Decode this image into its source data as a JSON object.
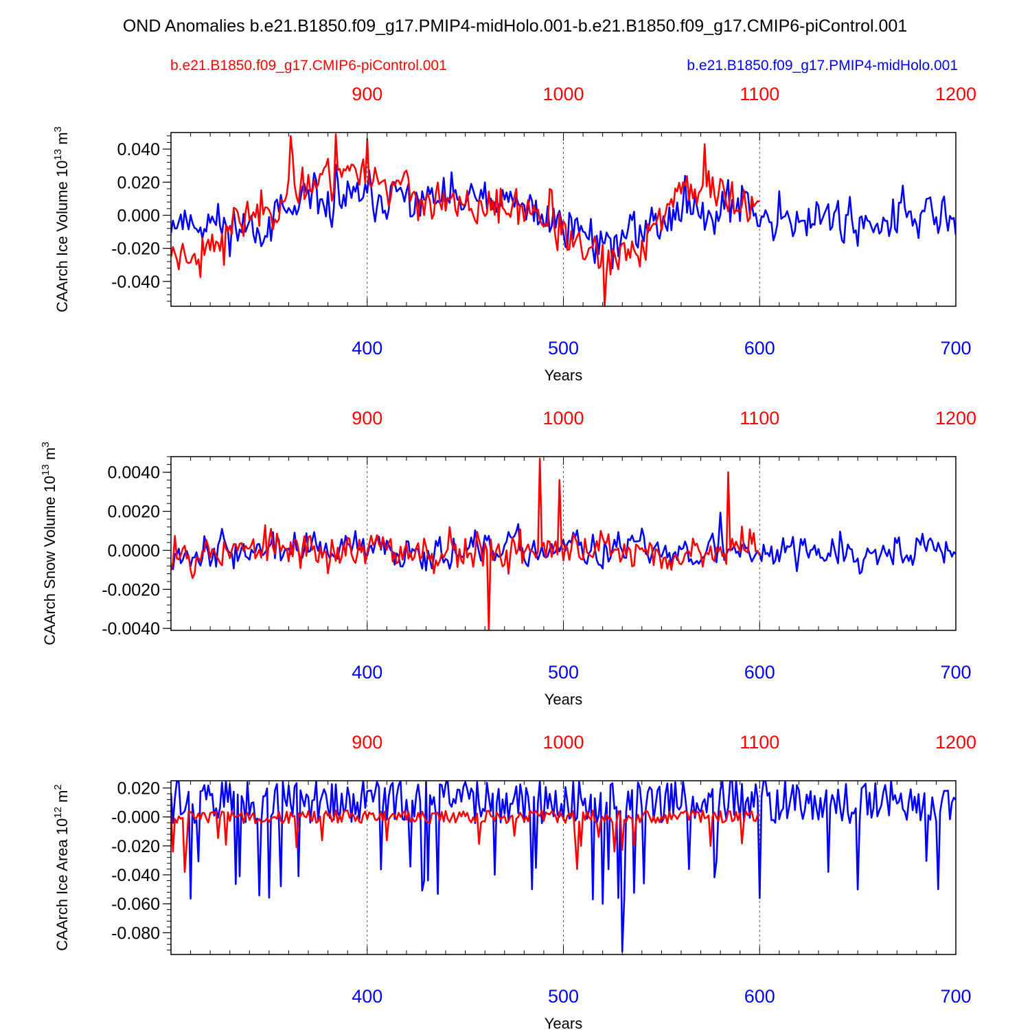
{
  "figure": {
    "title": "OND Anomalies b.e21.B1850.f09_g17.PMIP4-midHolo.001-b.e21.B1850.f09_g17.CMIP6-piControl.001",
    "legend": [
      {
        "label": "b.e21.B1850.f09_g17.CMIP6-piControl.001",
        "color": "#ff0000"
      },
      {
        "label": "b.e21.B1850.f09_g17.PMIP4-midHolo.001",
        "color": "#0000ff"
      }
    ]
  },
  "chart_data": [
    {
      "type": "line",
      "ylabel": "CAArch Ice Volume 10",
      "ylabel_exp": "13",
      "ylabel_unit": " m",
      "ylabel_unit_exp": "3",
      "xlabel": "Years",
      "xlim": [
        300,
        700
      ],
      "ylim": [
        -0.055,
        0.05
      ],
      "top_xlim": [
        800,
        1200
      ],
      "bottom_ticks": [
        "400",
        "500",
        "600",
        "700"
      ],
      "top_ticks": [
        "900",
        "1000",
        "1100",
        "1200"
      ],
      "y_ticks": [
        "0.040",
        "0.020",
        "0.000",
        "-0.020",
        "-0.040"
      ],
      "y_tick_values": [
        0.04,
        0.02,
        0.0,
        -0.02,
        -0.04
      ],
      "grid_x": [
        400,
        500,
        600
      ],
      "series": [
        {
          "name": "b.e21.B1850.f09_g17.PMIP4-midHolo.001",
          "color": "#0000ff",
          "x_start": 300,
          "seed": 11,
          "amp": 0.0175,
          "mean": -0.002,
          "drift": "blue_ice",
          "min": -0.045,
          "max": 0.042
        },
        {
          "name": "b.e21.B1850.f09_g17.CMIP6-piControl.001",
          "color": "#ff0000",
          "x_start": 300,
          "x_end": 600,
          "seed": 23,
          "amp": 0.016,
          "mean": 0.0,
          "drift": "red_ice",
          "min": -0.056,
          "max": 0.049
        }
      ]
    },
    {
      "type": "line",
      "ylabel": "CAArch Snow Volume 10",
      "ylabel_exp": "13",
      "ylabel_unit": " m",
      "ylabel_unit_exp": "3",
      "xlabel": "Years",
      "xlim": [
        300,
        700
      ],
      "ylim": [
        -0.0041,
        0.0048
      ],
      "top_xlim": [
        800,
        1200
      ],
      "bottom_ticks": [
        "400",
        "500",
        "600",
        "700"
      ],
      "top_ticks": [
        "900",
        "1000",
        "1100",
        "1200"
      ],
      "y_ticks": [
        "0.0040",
        "0.0020",
        "0.0000",
        "-0.0020",
        "-0.0040"
      ],
      "y_tick_values": [
        0.004,
        0.002,
        0.0,
        -0.002,
        -0.004
      ],
      "grid_x": [
        400,
        500,
        600
      ],
      "series": [
        {
          "name": "b.e21.B1850.f09_g17.PMIP4-midHolo.001",
          "color": "#0000ff",
          "x_start": 300,
          "seed": 37,
          "amp": 0.0011,
          "mean": 0.0,
          "drift": "none",
          "min": -0.0024,
          "max": 0.0032
        },
        {
          "name": "b.e21.B1850.f09_g17.CMIP6-piControl.001",
          "color": "#ff0000",
          "x_start": 300,
          "x_end": 600,
          "seed": 53,
          "amp": 0.0013,
          "mean": 0.0,
          "drift": "none",
          "min": -0.0041,
          "max": 0.0048
        }
      ]
    },
    {
      "type": "line",
      "ylabel": "CAArch Ice Area 10",
      "ylabel_exp": "12",
      "ylabel_unit": " m",
      "ylabel_unit_exp": "2",
      "xlabel": "Years",
      "xlim": [
        300,
        700
      ],
      "ylim": [
        -0.095,
        0.025
      ],
      "top_xlim": [
        800,
        1200
      ],
      "bottom_ticks": [
        "400",
        "500",
        "600",
        "700"
      ],
      "top_ticks": [
        "900",
        "1000",
        "1100",
        "1200"
      ],
      "y_ticks": [
        "0.020",
        "-0.000",
        "-0.020",
        "-0.040",
        "-0.060",
        "-0.080"
      ],
      "y_tick_values": [
        0.02,
        0.0,
        -0.02,
        -0.04,
        -0.06,
        -0.08
      ],
      "grid_x": [
        400,
        500,
        600
      ],
      "series": [
        {
          "name": "b.e21.B1850.f09_g17.PMIP4-midHolo.001",
          "color": "#0000ff",
          "x_start": 300,
          "seed": 71,
          "amp": 0.018,
          "mean": 0.0,
          "drift": "area_blue",
          "min": -0.095,
          "max": 0.025
        },
        {
          "name": "b.e21.B1850.f09_g17.CMIP6-piControl.001",
          "color": "#ff0000",
          "x_start": 300,
          "x_end": 600,
          "seed": 89,
          "amp": 0.004,
          "mean": 0.0,
          "drift": "area_red",
          "min": -0.038,
          "max": 0.008
        }
      ]
    }
  ]
}
